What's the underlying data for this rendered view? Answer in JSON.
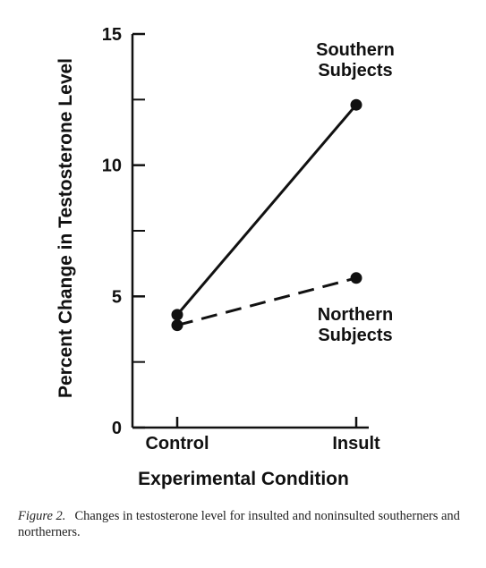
{
  "chart_data": {
    "type": "line",
    "categories": [
      "Control",
      "Insult"
    ],
    "series": [
      {
        "name": "Southern Subjects",
        "name_lines": [
          "Southern",
          "Subjects"
        ],
        "values": [
          4.3,
          12.3
        ],
        "style": "solid"
      },
      {
        "name": "Northern Subjects",
        "name_lines": [
          "Northern",
          "Subjects"
        ],
        "values": [
          3.9,
          5.7
        ],
        "style": "dashed"
      }
    ],
    "xlabel": "Experimental Condition",
    "ylabel": "Percent Change in Testosterone Level",
    "ylim": [
      0,
      15
    ],
    "yticks_major": [
      0,
      5,
      10,
      15
    ],
    "yticks_minor": [
      2.5,
      7.5,
      12.5
    ],
    "grid": false,
    "colors": {
      "line": "#111111",
      "marker": "#111111"
    }
  },
  "caption": {
    "label": "Figure 2.",
    "text": "Changes in testosterone level for insulted and noninsulted southerners and northerners."
  }
}
